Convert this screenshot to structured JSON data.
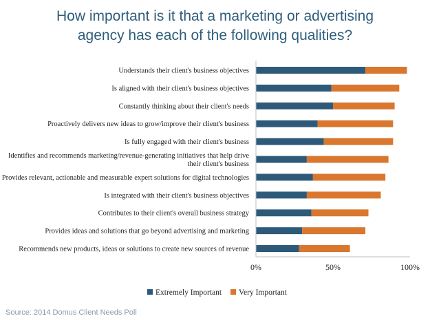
{
  "chart_data": {
    "type": "bar",
    "stacked": true,
    "orientation": "horizontal",
    "title_lines": [
      "How important is it that a marketing or advertising",
      "agency has each of the following qualities?"
    ],
    "categories": [
      [
        "Understands their client's business objectives"
      ],
      [
        "Is aligned with their client's business objectives"
      ],
      [
        "Constantly thinking about their client's needs"
      ],
      [
        "Proactively delivers new ideas to grow/improve their client's business"
      ],
      [
        "Is fully engaged with their client's business"
      ],
      [
        "Identifies and recommends marketing/revenue-generating initiatives that help drive",
        "their client's business"
      ],
      [
        "Provides relevant, actionable and measurable expert solutions for digital technologies"
      ],
      [
        "Is integrated with their client's business objectives"
      ],
      [
        "Contributes to their client's overall business strategy"
      ],
      [
        "Provides ideas and solutions that go beyond advertising and marketing"
      ],
      [
        "Recommends new products, ideas or solutions to create new sources of revenue"
      ]
    ],
    "series": [
      {
        "name": "Extremely Important",
        "color": "#2e5a7a",
        "values": [
          71,
          49,
          50,
          40,
          44,
          33,
          37,
          33,
          36,
          30,
          28
        ]
      },
      {
        "name": "Very Important",
        "color": "#d9772e",
        "values": [
          27,
          44,
          40,
          49,
          45,
          53,
          47,
          48,
          37,
          41,
          33
        ]
      }
    ],
    "xlim": [
      0,
      100
    ],
    "xticks": [
      "0%",
      "50%",
      "100%"
    ],
    "legend_position": "bottom"
  },
  "source": "Source: 2014 Domus Client Needs Poll"
}
